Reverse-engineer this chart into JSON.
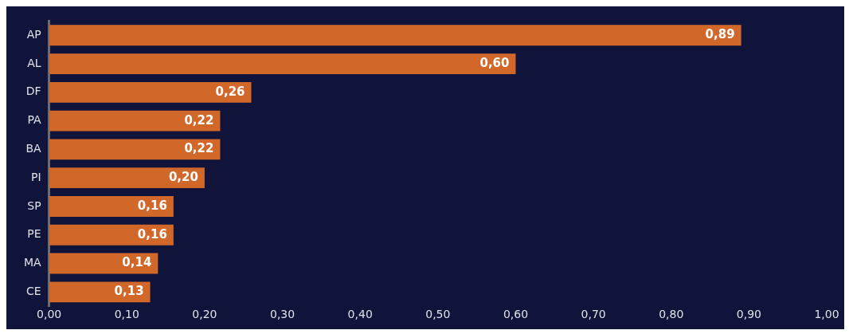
{
  "chart_data": {
    "type": "bar",
    "orientation": "horizontal",
    "categories": [
      "AP",
      "AL",
      "DF",
      "PA",
      "BA",
      "PI",
      "SP",
      "PE",
      "MA",
      "CE"
    ],
    "values": [
      0.89,
      0.6,
      0.26,
      0.22,
      0.22,
      0.2,
      0.16,
      0.16,
      0.14,
      0.13
    ],
    "value_labels": [
      "0,89",
      "0,60",
      "0,26",
      "0,22",
      "0,22",
      "0,20",
      "0,16",
      "0,16",
      "0,14",
      "0,13"
    ],
    "color": "#d2672a",
    "xlim": [
      0,
      1
    ],
    "xticks": [
      {
        "value": 0,
        "label": "0,00"
      },
      {
        "value": 0.1,
        "label": "0,10"
      },
      {
        "value": 0.2,
        "label": "0,20"
      },
      {
        "value": 0.3,
        "label": "0,30"
      },
      {
        "value": 0.4,
        "label": "0,40"
      },
      {
        "value": 0.5,
        "label": "0,50"
      },
      {
        "value": 0.6,
        "label": "0,60"
      },
      {
        "value": 0.7,
        "label": "0,70"
      },
      {
        "value": 0.8,
        "label": "0,80"
      },
      {
        "value": 0.9,
        "label": "0,90"
      },
      {
        "value": 1,
        "label": "1,00"
      }
    ],
    "grid": false,
    "legend": false
  }
}
